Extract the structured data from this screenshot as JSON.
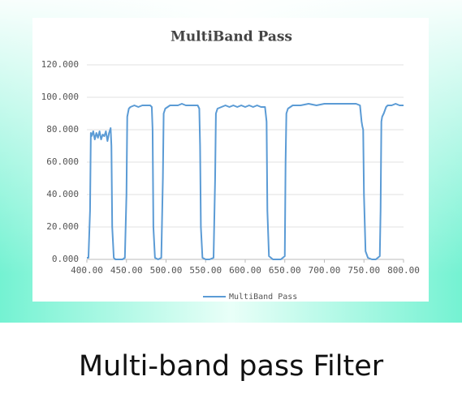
{
  "caption": "Multi-band pass Filter",
  "chart_data": {
    "type": "line",
    "title": "MultiBand Pass",
    "x": [
      400,
      402,
      404,
      405,
      406,
      408,
      410,
      412,
      414,
      416,
      418,
      420,
      422,
      424,
      426,
      428,
      430,
      431,
      432,
      434,
      436,
      440,
      445,
      448,
      450,
      451,
      453,
      455,
      460,
      465,
      470,
      475,
      480,
      482,
      483,
      484,
      486,
      490,
      494,
      496,
      497,
      499,
      502,
      505,
      510,
      515,
      520,
      525,
      530,
      535,
      540,
      542,
      543,
      544,
      546,
      550,
      555,
      560,
      562,
      563,
      565,
      570,
      575,
      580,
      585,
      590,
      595,
      600,
      605,
      610,
      615,
      620,
      625,
      627,
      628,
      630,
      635,
      640,
      645,
      650,
      651,
      652,
      654,
      660,
      670,
      680,
      690,
      700,
      710,
      720,
      730,
      740,
      745,
      747,
      748,
      749,
      750,
      752,
      755,
      760,
      765,
      770,
      771,
      772,
      773,
      775,
      778,
      780,
      785,
      790,
      795,
      800
    ],
    "series": [
      {
        "name": "MultiBand Pass",
        "color": "#5b9bd5",
        "values": [
          1,
          1,
          30,
          78,
          76,
          79,
          74,
          78,
          75,
          79,
          74,
          77,
          76,
          79,
          73,
          78,
          81,
          70,
          20,
          1,
          0,
          0,
          0,
          1,
          40,
          88,
          93,
          94,
          95,
          94,
          95,
          95,
          95,
          94,
          80,
          20,
          1,
          0,
          1,
          50,
          90,
          93,
          94,
          95,
          95,
          95,
          96,
          95,
          95,
          95,
          95,
          93,
          70,
          20,
          1,
          0,
          0,
          1,
          50,
          90,
          93,
          94,
          95,
          94,
          95,
          94,
          95,
          94,
          95,
          94,
          95,
          94,
          94,
          85,
          30,
          2,
          0,
          0,
          0,
          2,
          60,
          90,
          93,
          95,
          95,
          96,
          95,
          96,
          96,
          96,
          96,
          96,
          95,
          85,
          82,
          80,
          40,
          5,
          1,
          0,
          0,
          2,
          30,
          85,
          88,
          90,
          94,
          95,
          95,
          96,
          95,
          95
        ]
      }
    ],
    "xlim": [
      400,
      800
    ],
    "xticks": [
      {
        "value": 400,
        "label": "400.00"
      },
      {
        "value": 450,
        "label": "450.00"
      },
      {
        "value": 500,
        "label": "500.00"
      },
      {
        "value": 550,
        "label": "550.00"
      },
      {
        "value": 600,
        "label": "600.00"
      },
      {
        "value": 650,
        "label": "650.00"
      },
      {
        "value": 700,
        "label": "700.00"
      },
      {
        "value": 750,
        "label": "750.00"
      },
      {
        "value": 800,
        "label": "800.00"
      }
    ],
    "ylim": [
      0,
      120
    ],
    "yticks": [
      {
        "value": 0,
        "label": "0.000"
      },
      {
        "value": 20,
        "label": "20.000"
      },
      {
        "value": 40,
        "label": "40.000"
      },
      {
        "value": 60,
        "label": "60.000"
      },
      {
        "value": 80,
        "label": "80.000"
      },
      {
        "value": 100,
        "label": "100.000"
      },
      {
        "value": 120,
        "label": "120.000"
      }
    ],
    "grid": true,
    "legend": "bottom"
  }
}
